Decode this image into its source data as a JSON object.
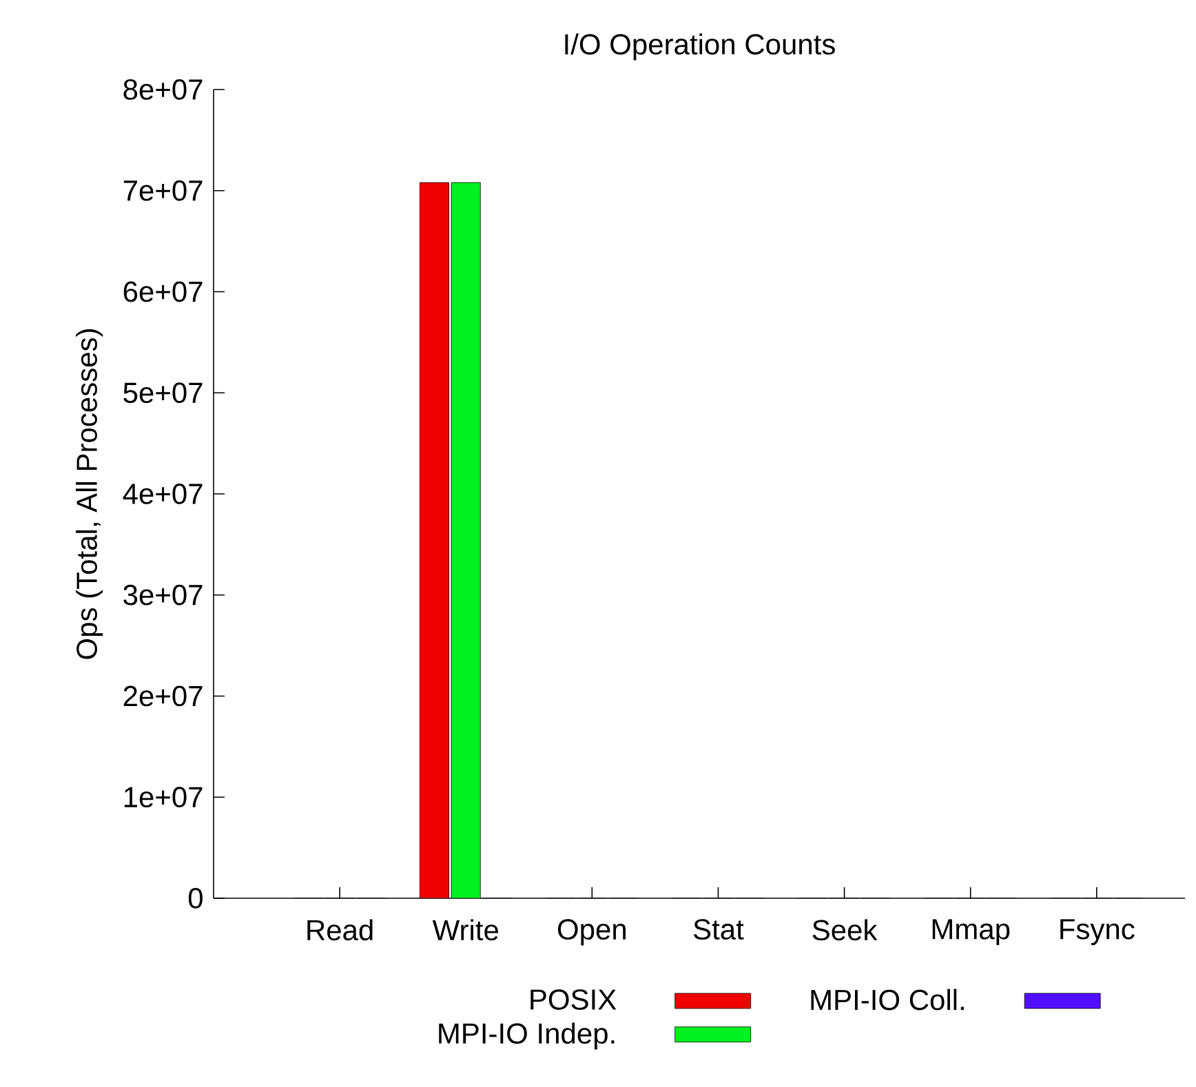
{
  "chart_data": {
    "type": "bar",
    "title": "I/O Operation Counts",
    "ylabel": "Ops (Total, All Processes)",
    "categories": [
      "Read",
      "Write",
      "Open",
      "Stat",
      "Seek",
      "Mmap",
      "Fsync"
    ],
    "series": [
      {
        "name": "POSIX",
        "color": "#f00000",
        "values": [
          0,
          70800000,
          0,
          0,
          0,
          0,
          0
        ]
      },
      {
        "name": "MPI-IO Indep.",
        "color": "#00f020",
        "values": [
          0,
          70800000,
          0,
          0,
          0,
          0,
          0
        ]
      },
      {
        "name": "MPI-IO Coll.",
        "color": "#5010ff",
        "values": [
          0,
          0,
          0,
          0,
          0,
          0,
          0
        ]
      }
    ],
    "ylim": [
      0,
      80000000
    ],
    "yticks": [
      0,
      {
        "value": 10000000,
        "label": "1e+07"
      },
      {
        "value": 20000000,
        "label": "2e+07"
      },
      {
        "value": 30000000,
        "label": "3e+07"
      },
      {
        "value": 40000000,
        "label": "4e+07"
      },
      {
        "value": 50000000,
        "label": "5e+07"
      },
      {
        "value": 60000000,
        "label": "6e+07"
      },
      {
        "value": 70000000,
        "label": "7e+07"
      },
      {
        "value": 80000000,
        "label": "8e+07"
      }
    ],
    "legend": "bottom"
  }
}
